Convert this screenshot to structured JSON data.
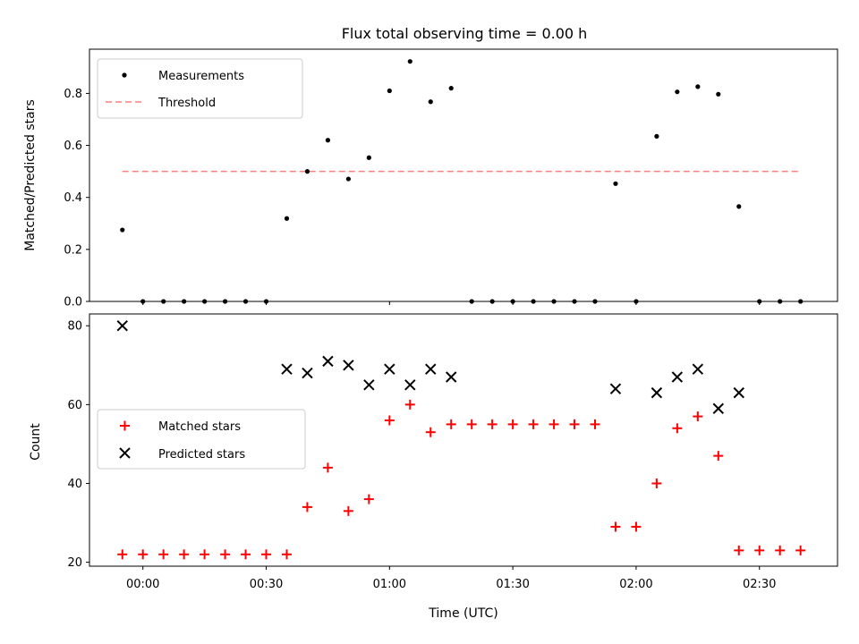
{
  "figure_title": "Flux total observing time = 0.00 h",
  "colors": {
    "measurement": "#000000",
    "threshold": "#ff7f7f",
    "matched": "#ff0000",
    "predicted": "#000000"
  },
  "chart_data": [
    {
      "type": "scatter",
      "panel": "top",
      "ylabel": "Matched/Predicted stars",
      "ylim": [
        0,
        0.97
      ],
      "yticks": [
        0.0,
        0.2,
        0.4,
        0.6,
        0.8
      ],
      "ytick_labels": [
        "0.0",
        "0.2",
        "0.4",
        "0.6",
        "0.8"
      ],
      "legend": {
        "placement": "top-left",
        "measurements_label": "Measurements",
        "threshold_label": "Threshold"
      },
      "series": [
        {
          "name": "Measurements",
          "marker": "dot",
          "x": [
            "23:55",
            "00:00",
            "00:05",
            "00:10",
            "00:15",
            "00:20",
            "00:25",
            "00:30",
            "00:35",
            "00:40",
            "00:45",
            "00:50",
            "00:55",
            "01:00",
            "01:05",
            "01:10",
            "01:15",
            "01:20",
            "01:25",
            "01:30",
            "01:35",
            "01:40",
            "01:45",
            "01:50",
            "01:55",
            "02:00",
            "02:05",
            "02:10",
            "02:15",
            "02:20",
            "02:25",
            "02:30",
            "02:35",
            "02:40"
          ],
          "y": [
            0.275,
            0,
            0,
            0,
            0,
            0,
            0,
            0,
            0.319,
            0.5,
            0.62,
            0.471,
            0.553,
            0.81,
            0.923,
            0.768,
            0.82,
            0,
            0,
            0,
            0,
            0,
            0,
            0,
            0.453,
            0,
            0.635,
            0.806,
            0.826,
            0.797,
            0.365,
            0,
            0,
            0
          ]
        },
        {
          "name": "Threshold",
          "style": "dashed",
          "x": [
            "23:55",
            "02:40"
          ],
          "y": [
            0.5,
            0.5
          ]
        }
      ]
    },
    {
      "type": "scatter",
      "panel": "bottom",
      "xlabel": "Time (UTC)",
      "ylabel": "Count",
      "ylim": [
        19,
        83
      ],
      "yticks": [
        20,
        40,
        60,
        80
      ],
      "ytick_labels": [
        "20",
        "40",
        "60",
        "80"
      ],
      "xlim": [
        "23:47",
        "02:49"
      ],
      "xticks": [
        "00:00",
        "00:30",
        "01:00",
        "01:30",
        "02:00",
        "02:30"
      ],
      "legend": {
        "placement": "center-left",
        "matched_label": "Matched stars",
        "predicted_label": "Predicted stars"
      },
      "series": [
        {
          "name": "Matched stars",
          "marker": "plus",
          "x": [
            "23:55",
            "00:00",
            "00:05",
            "00:10",
            "00:15",
            "00:20",
            "00:25",
            "00:30",
            "00:35",
            "00:40",
            "00:45",
            "00:50",
            "00:55",
            "01:00",
            "01:05",
            "01:10",
            "01:15",
            "01:20",
            "01:25",
            "01:30",
            "01:35",
            "01:40",
            "01:45",
            "01:50",
            "01:55",
            "02:00",
            "02:05",
            "02:10",
            "02:15",
            "02:20",
            "02:25",
            "02:30",
            "02:35",
            "02:40"
          ],
          "y": [
            22,
            22,
            22,
            22,
            22,
            22,
            22,
            22,
            22,
            34,
            44,
            33,
            36,
            56,
            60,
            53,
            55,
            55,
            55,
            55,
            55,
            55,
            55,
            55,
            29,
            29,
            40,
            54,
            57,
            47,
            23,
            23,
            23,
            23
          ]
        },
        {
          "name": "Predicted stars",
          "marker": "x",
          "x": [
            "23:55",
            "00:35",
            "00:40",
            "00:45",
            "00:50",
            "00:55",
            "01:00",
            "01:05",
            "01:10",
            "01:15",
            "01:55",
            "02:05",
            "02:10",
            "02:15",
            "02:20",
            "02:25"
          ],
          "y": [
            80,
            69,
            68,
            71,
            70,
            65,
            69,
            65,
            69,
            67,
            64,
            63,
            67,
            69,
            59,
            63
          ]
        }
      ]
    }
  ]
}
